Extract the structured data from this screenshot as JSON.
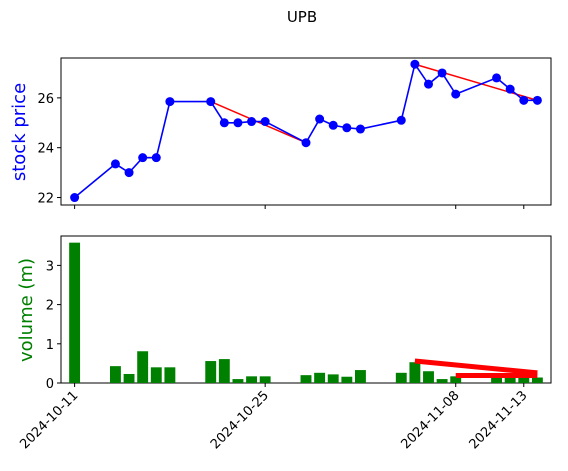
{
  "chart_data": [
    {
      "type": "line",
      "title": "UPB",
      "ylabel": "stock price",
      "ylabel_color": "#0000ff",
      "dates": [
        "2024-10-11",
        "2024-10-14",
        "2024-10-15",
        "2024-10-16",
        "2024-10-17",
        "2024-10-18",
        "2024-10-21",
        "2024-10-22",
        "2024-10-23",
        "2024-10-24",
        "2024-10-25",
        "2024-10-28",
        "2024-10-29",
        "2024-10-30",
        "2024-10-31",
        "2024-11-01",
        "2024-11-04",
        "2024-11-05",
        "2024-11-06",
        "2024-11-07",
        "2024-11-08",
        "2024-11-11",
        "2024-11-12",
        "2024-11-13",
        "2024-11-14"
      ],
      "values": [
        22.0,
        23.35,
        23.0,
        23.6,
        23.6,
        25.85,
        25.85,
        25.0,
        25.0,
        25.05,
        25.05,
        24.2,
        25.15,
        24.9,
        24.8,
        24.75,
        25.1,
        27.35,
        26.55,
        27.0,
        26.15,
        26.8,
        26.35,
        25.9,
        25.9
      ],
      "line_color": "#0000ff",
      "trend_segments": [
        {
          "from": 3,
          "to": 4,
          "color": "#ff0000"
        },
        {
          "from": 6,
          "to": 11,
          "color": "#ff0000"
        },
        {
          "from": 17,
          "to": 24,
          "color": "#ff0000"
        }
      ],
      "ylim": [
        21.7,
        27.6
      ],
      "yticks": [
        22,
        24,
        26
      ],
      "grid": false
    },
    {
      "type": "bar",
      "ylabel": "volume (m)",
      "ylabel_color": "#008000",
      "dates": [
        "2024-10-11",
        "2024-10-14",
        "2024-10-15",
        "2024-10-16",
        "2024-10-17",
        "2024-10-18",
        "2024-10-21",
        "2024-10-22",
        "2024-10-23",
        "2024-10-24",
        "2024-10-25",
        "2024-10-28",
        "2024-10-29",
        "2024-10-30",
        "2024-10-31",
        "2024-11-01",
        "2024-11-04",
        "2024-11-05",
        "2024-11-06",
        "2024-11-07",
        "2024-11-08",
        "2024-11-11",
        "2024-11-12",
        "2024-11-13",
        "2024-11-14"
      ],
      "values": [
        3.58,
        0.43,
        0.23,
        0.81,
        0.4,
        0.4,
        0.56,
        0.61,
        0.1,
        0.17,
        0.17,
        0.2,
        0.26,
        0.22,
        0.16,
        0.33,
        0.26,
        0.53,
        0.3,
        0.1,
        0.17,
        0.17,
        0.17,
        0.17,
        0.14
      ],
      "bar_color": "#008000",
      "trend_segments": [
        {
          "from_date": "2024-11-05",
          "from_value": 0.56,
          "to_date": "2024-11-14",
          "to_value": 0.26,
          "color": "#ff0000"
        },
        {
          "from_date": "2024-11-08",
          "from_value": 0.19,
          "to_date": "2024-11-14",
          "to_value": 0.19,
          "color": "#ff0000"
        }
      ],
      "ylim": [
        0,
        3.75
      ],
      "yticks": [
        0,
        1,
        2,
        3
      ],
      "grid": false
    }
  ],
  "x_axis": {
    "tick_labels": [
      "2024-10-11",
      "2024-10-25",
      "2024-11-08",
      "2024-11-13"
    ],
    "tick_dates": [
      "2024-10-11",
      "2024-10-25",
      "2024-11-08",
      "2024-11-13"
    ],
    "range_dates": [
      "2024-10-10",
      "2024-11-15"
    ]
  }
}
